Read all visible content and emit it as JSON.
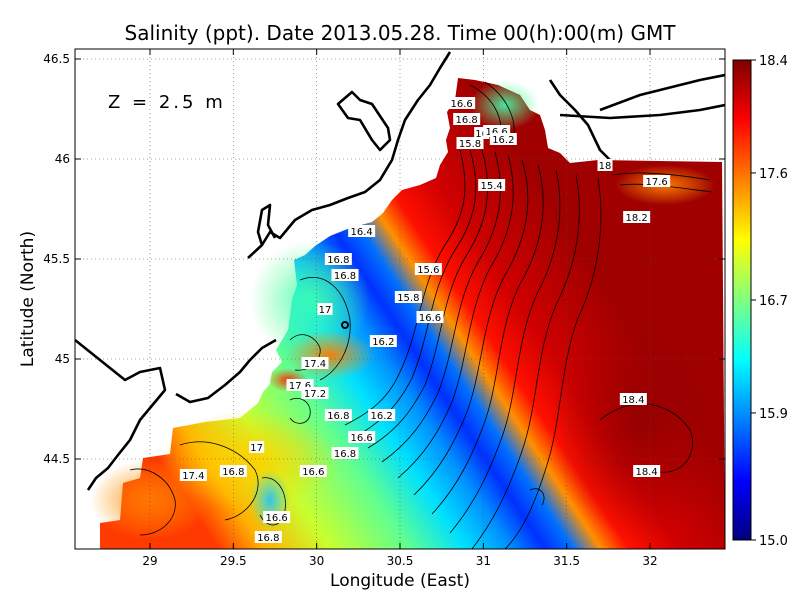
{
  "title": "Salinity (ppt). Date 2013.05.28. Time 00(h):00(m) GMT",
  "depth_label": "Z = 2.5 m",
  "xlabel": "Longitude (East)",
  "ylabel": "Latitude (North)",
  "chart_data": {
    "type": "heatmap",
    "title": "Salinity (ppt). Date 2013.05.28. Time 00(h):00(m) GMT",
    "xlabel": "Longitude (East)",
    "ylabel": "Latitude (North)",
    "xlim": [
      28.55,
      32.45
    ],
    "ylim": [
      44.05,
      46.55
    ],
    "x_ticks": [
      29,
      29.5,
      30,
      30.5,
      31,
      31.5,
      32
    ],
    "x_tick_labels": [
      "29",
      "29.5",
      "30",
      "30.5",
      "31",
      "31.5",
      "32"
    ],
    "y_ticks": [
      44.5,
      45,
      45.5,
      46,
      46.5
    ],
    "y_tick_labels": [
      "44.5",
      "45",
      "45.5",
      "46",
      "46.5"
    ],
    "grid": true,
    "colorbar": {
      "min": 15.0,
      "max": 18.4,
      "ticks": [
        15.0,
        15.9,
        16.7,
        17.6,
        18.4
      ],
      "tick_labels": [
        "15.0",
        "15.9",
        "16.7",
        "17.6",
        "18.4"
      ],
      "colors": [
        "#00007f",
        "#0000ff",
        "#0080ff",
        "#00ffff",
        "#80ff80",
        "#ffff00",
        "#ff8000",
        "#ff0000",
        "#7f0000"
      ]
    },
    "contour_labels": [
      {
        "text": "16.6",
        "lon": 30.87,
        "lat": 46.28
      },
      {
        "text": "16.8",
        "lon": 30.9,
        "lat": 46.2
      },
      {
        "text": "16",
        "lon": 30.99,
        "lat": 46.13
      },
      {
        "text": "16.6",
        "lon": 31.08,
        "lat": 46.14
      },
      {
        "text": "15.8",
        "lon": 30.92,
        "lat": 46.08
      },
      {
        "text": "16.2",
        "lon": 31.12,
        "lat": 46.1
      },
      {
        "text": "15.4",
        "lon": 31.05,
        "lat": 45.87
      },
      {
        "text": "18",
        "lon": 31.73,
        "lat": 45.97
      },
      {
        "text": "17.6",
        "lon": 32.04,
        "lat": 45.89
      },
      {
        "text": "18.2",
        "lon": 31.92,
        "lat": 45.71
      },
      {
        "text": "16.4",
        "lon": 30.27,
        "lat": 45.64
      },
      {
        "text": "16.8",
        "lon": 30.13,
        "lat": 45.5
      },
      {
        "text": "16.8",
        "lon": 30.17,
        "lat": 45.42
      },
      {
        "text": "15.6",
        "lon": 30.67,
        "lat": 45.45
      },
      {
        "text": "15.8",
        "lon": 30.55,
        "lat": 45.31
      },
      {
        "text": "17",
        "lon": 30.05,
        "lat": 45.25
      },
      {
        "text": "16.6",
        "lon": 30.68,
        "lat": 45.21
      },
      {
        "text": "16.2",
        "lon": 30.4,
        "lat": 45.09
      },
      {
        "text": "17.4",
        "lon": 29.99,
        "lat": 44.98
      },
      {
        "text": "17.6",
        "lon": 29.9,
        "lat": 44.87
      },
      {
        "text": "17.2",
        "lon": 29.99,
        "lat": 44.83
      },
      {
        "text": "18.4",
        "lon": 31.9,
        "lat": 44.8
      },
      {
        "text": "16.8",
        "lon": 30.13,
        "lat": 44.72
      },
      {
        "text": "16.2",
        "lon": 30.39,
        "lat": 44.72
      },
      {
        "text": "16.6",
        "lon": 30.27,
        "lat": 44.61
      },
      {
        "text": "17",
        "lon": 29.64,
        "lat": 44.56
      },
      {
        "text": "16.8",
        "lon": 30.17,
        "lat": 44.53
      },
      {
        "text": "16.8",
        "lon": 29.5,
        "lat": 44.44
      },
      {
        "text": "16.6",
        "lon": 29.98,
        "lat": 44.44
      },
      {
        "text": "17.4",
        "lon": 29.26,
        "lat": 44.42
      },
      {
        "text": "18.4",
        "lon": 31.98,
        "lat": 44.44
      },
      {
        "text": "16.6",
        "lon": 29.76,
        "lat": 44.21
      },
      {
        "text": "16.8",
        "lon": 29.71,
        "lat": 44.11
      }
    ]
  }
}
